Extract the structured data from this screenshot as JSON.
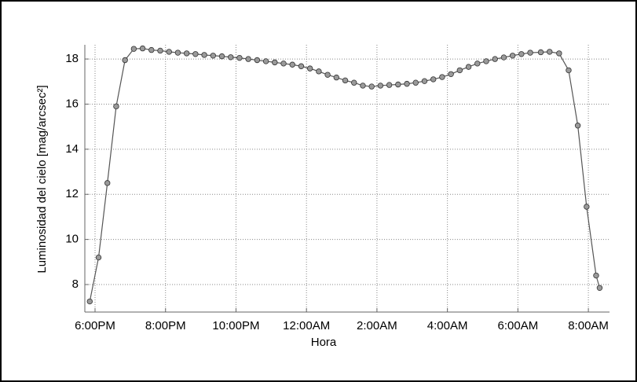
{
  "chart_data": {
    "type": "line",
    "xlabel": "Hora",
    "ylabel": "Luminosidad del cielo [mag/arcsec²]",
    "x": [
      17.85,
      18.1,
      18.35,
      18.6,
      18.85,
      19.1,
      19.35,
      19.6,
      19.85,
      20.1,
      20.35,
      20.6,
      20.85,
      21.1,
      21.35,
      21.6,
      21.85,
      22.1,
      22.35,
      22.6,
      22.85,
      23.1,
      23.35,
      23.6,
      23.85,
      24.1,
      24.35,
      24.6,
      24.85,
      25.1,
      25.35,
      25.6,
      25.85,
      26.1,
      26.35,
      26.6,
      26.85,
      27.1,
      27.35,
      27.6,
      27.85,
      28.1,
      28.35,
      28.6,
      28.85,
      29.1,
      29.35,
      29.6,
      29.85,
      30.1,
      30.35,
      30.65,
      30.9,
      31.17,
      31.44,
      31.7,
      31.95,
      32.22,
      32.32
    ],
    "series": [
      {
        "color": "#555555",
        "marker_color": "#9a9a9a",
        "values": [
          7.25,
          9.2,
          12.5,
          15.9,
          17.95,
          18.45,
          18.47,
          18.4,
          18.37,
          18.32,
          18.28,
          18.25,
          18.22,
          18.18,
          18.15,
          18.12,
          18.08,
          18.05,
          18.0,
          17.95,
          17.9,
          17.85,
          17.8,
          17.75,
          17.68,
          17.58,
          17.45,
          17.3,
          17.18,
          17.05,
          16.95,
          16.82,
          16.78,
          16.82,
          16.85,
          16.87,
          16.9,
          16.95,
          17.02,
          17.1,
          17.2,
          17.33,
          17.5,
          17.65,
          17.8,
          17.9,
          18.0,
          18.07,
          18.15,
          18.22,
          18.28,
          18.3,
          18.32,
          18.25,
          17.5,
          15.05,
          11.45,
          8.4,
          7.85
        ]
      }
    ],
    "xlim": [
      17.71,
      32.6
    ],
    "xticks": [
      {
        "value": 18,
        "label": "6:00PM"
      },
      {
        "value": 20,
        "label": "8:00PM"
      },
      {
        "value": 22,
        "label": "10:00PM"
      },
      {
        "value": 24,
        "label": "12:00AM"
      },
      {
        "value": 26,
        "label": "2:00AM"
      },
      {
        "value": 28,
        "label": "4:00AM"
      },
      {
        "value": 30,
        "label": "6:00AM"
      },
      {
        "value": 32,
        "label": "8:00AM"
      }
    ],
    "ylim": [
      6.78,
      18.63
    ],
    "yticks": [
      8,
      10,
      12,
      14,
      16,
      18
    ],
    "grid": true
  }
}
